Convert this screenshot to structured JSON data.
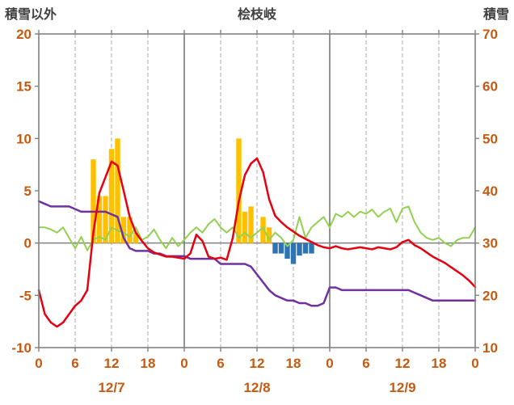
{
  "header": {
    "left": "積雪以外",
    "center": "桧枝岐",
    "right": "積雪"
  },
  "chart_data": {
    "type": "line",
    "title": "桧枝岐",
    "left_axis": {
      "label": "積雪以外",
      "min": -10,
      "max": 20,
      "ticks": [
        -10,
        -5,
        0,
        5,
        10,
        15,
        20
      ]
    },
    "right_axis": {
      "label": "積雪",
      "min": 10,
      "max": 70,
      "ticks": [
        10,
        20,
        30,
        40,
        50,
        60,
        70
      ]
    },
    "x_axis": {
      "min": 0,
      "max": 72,
      "tick_step": 6,
      "tick_labels": [
        "0",
        "6",
        "12",
        "18",
        "0",
        "6",
        "12",
        "18",
        "0",
        "6",
        "12",
        "18",
        "0"
      ],
      "day_labels": [
        "12/7",
        "12/8",
        "12/9"
      ]
    },
    "colors": {
      "axis": "#808080",
      "grid_minor": "#ababab",
      "grid_major": "#595959",
      "tick_text": "#c55a11",
      "header_text": "#3f3f3f"
    },
    "series": [
      {
        "name": "orange-bars",
        "type": "bar",
        "axis": "left",
        "color": "#ffc000",
        "points": [
          [
            9,
            8
          ],
          [
            10,
            4.5
          ],
          [
            11,
            4.5
          ],
          [
            12,
            9
          ],
          [
            13,
            10
          ],
          [
            14,
            2.5
          ],
          [
            15,
            2.5
          ],
          [
            16,
            1
          ],
          [
            33,
            10
          ],
          [
            34,
            3
          ],
          [
            35,
            3.5
          ],
          [
            37,
            2.5
          ],
          [
            38,
            1.5
          ]
        ]
      },
      {
        "name": "blue-bars",
        "type": "bar",
        "axis": "left",
        "color": "#2e74b5",
        "points": [
          [
            39,
            -1
          ],
          [
            40,
            -1
          ],
          [
            41,
            -1.5
          ],
          [
            42,
            -2
          ],
          [
            43,
            -1.2
          ],
          [
            44,
            -1
          ],
          [
            45,
            -1
          ]
        ]
      },
      {
        "name": "green-line",
        "type": "line",
        "axis": "left",
        "color": "#92d050",
        "width": 2,
        "values": [
          1.5,
          1.5,
          1.3,
          1,
          1.5,
          0.5,
          -0.5,
          0.6,
          -0.7,
          0.3,
          0.6,
          0.3,
          1.5,
          1.2,
          1,
          0.6,
          1.5,
          0.3,
          0.6,
          1.3,
          0.3,
          -0.5,
          0.5,
          -0.3,
          0.3,
          1,
          1.5,
          1,
          1.8,
          2.3,
          1.5,
          1,
          1.5,
          0.5,
          1,
          0.5,
          1,
          1.5,
          0.3,
          1,
          0.5,
          -0.3,
          0.3,
          2.5,
          0.5,
          1.5,
          2,
          2.5,
          1.5,
          2.8,
          2.5,
          3,
          2.5,
          3,
          2.8,
          3.2,
          2.5,
          3,
          3.3,
          2,
          3.3,
          3.5,
          2,
          1,
          0.5,
          0.3,
          0.5,
          0,
          -0.3,
          0.3,
          0.5,
          0.5,
          1.5
        ]
      },
      {
        "name": "purple-line",
        "type": "line",
        "axis": "right",
        "color": "#7030a0",
        "width": 2.5,
        "values": [
          38,
          37.5,
          37,
          37,
          37,
          37,
          36.5,
          36,
          36,
          36,
          36,
          36,
          35.5,
          35,
          31,
          29,
          28.5,
          28.5,
          28.5,
          28,
          28,
          27.5,
          27.5,
          27.5,
          27.5,
          27,
          27,
          27,
          27,
          27,
          26,
          26,
          26,
          26,
          26,
          25.5,
          24,
          22.5,
          21,
          20,
          19.5,
          19,
          19,
          18.5,
          18.5,
          18,
          18,
          18.5,
          21.5,
          21.5,
          21,
          21,
          21,
          21,
          21,
          21,
          21,
          21,
          21,
          21,
          21,
          21,
          20.5,
          20,
          19.5,
          19,
          19,
          19,
          19,
          19,
          19,
          19,
          19
        ]
      },
      {
        "name": "red-line",
        "type": "line",
        "axis": "left",
        "color": "#e60012",
        "width": 2.5,
        "values": [
          -4.5,
          -6.8,
          -7.6,
          -8,
          -7.6,
          -6.8,
          -6,
          -5.5,
          -4.5,
          1,
          4.8,
          6.3,
          7.8,
          7.4,
          5,
          2.5,
          1,
          0.2,
          -0.5,
          -0.9,
          -1.1,
          -1.3,
          -1.3,
          -1.4,
          -1.5,
          -1,
          0.8,
          0.2,
          -1.3,
          -1.5,
          -1.4,
          -1.6,
          0.5,
          4,
          6.5,
          7.6,
          8.1,
          6.8,
          4.2,
          2.6,
          2,
          1.5,
          1.1,
          0.7,
          0.4,
          0.1,
          -0.2,
          -0.4,
          -0.5,
          -0.3,
          -0.5,
          -0.6,
          -0.5,
          -0.4,
          -0.5,
          -0.6,
          -0.4,
          -0.5,
          -0.6,
          -0.4,
          0.1,
          0.3,
          -0.2,
          -0.5,
          -0.9,
          -1.3,
          -1.6,
          -1.9,
          -2.3,
          -2.7,
          -3.1,
          -3.6,
          -4.2
        ]
      }
    ]
  }
}
